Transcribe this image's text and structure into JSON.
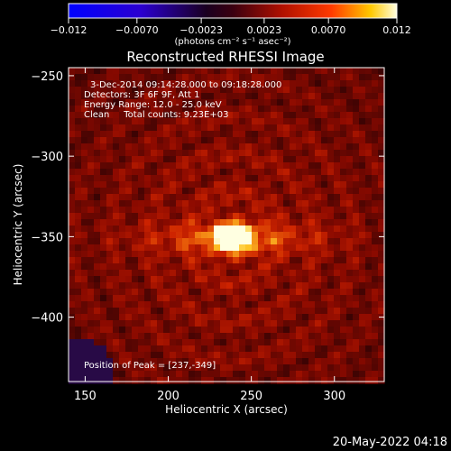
{
  "chart_data": {
    "type": "heatmap",
    "title": "Reconstructed RHESSI Image",
    "xlabel": "Heliocentric X (arcsec)",
    "ylabel": "Heliocentric Y (arcsec)",
    "xlim": [
      140,
      330
    ],
    "ylim": [
      -440,
      -245
    ],
    "x_ticks": [
      150,
      200,
      250,
      300
    ],
    "y_ticks": [
      -250,
      -300,
      -350,
      -400
    ],
    "colorbar": {
      "range": [
        -0.012,
        0.012
      ],
      "tick_labels": [
        "-0.012",
        "-0.0070",
        "-0.0023",
        "0.0023",
        "0.0070",
        "0.012"
      ],
      "units": "(photons cm⁻² s⁻¹ asec⁻²)"
    },
    "annotations": [
      "3-Dec-2014 09:14:28.000 to 09:18:28.000",
      "Detectors: 3F 6F 9F, Att 1",
      "Energy Range: 12.0 - 25.0 keV",
      "Clean     Total counts: 9.23E+03"
    ],
    "peak_label": "Position of Peak = [237,-349]",
    "peak": {
      "x": 237,
      "y": -349
    },
    "colors": {
      "background": "#000000",
      "axis": "#ffffff"
    }
  },
  "footer": {
    "timestamp": "20-May-2022 04:18"
  }
}
